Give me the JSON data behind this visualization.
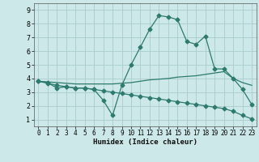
{
  "title": "",
  "xlabel": "Humidex (Indice chaleur)",
  "bg_color": "#cce8e8",
  "grid_color": "#aacccc",
  "line_color": "#2d7a6e",
  "xlim": [
    -0.5,
    23.5
  ],
  "ylim": [
    0.5,
    9.5
  ],
  "xticks": [
    0,
    1,
    2,
    3,
    4,
    5,
    6,
    7,
    8,
    9,
    10,
    11,
    12,
    13,
    14,
    15,
    16,
    17,
    18,
    19,
    20,
    21,
    22,
    23
  ],
  "yticks": [
    1,
    2,
    3,
    4,
    5,
    6,
    7,
    8,
    9
  ],
  "line1_x": [
    0,
    1,
    2,
    3,
    4,
    5,
    6,
    7,
    8,
    9,
    10,
    11,
    12,
    13,
    14,
    15,
    16,
    17,
    18,
    19,
    20,
    21,
    22,
    23
  ],
  "line1_y": [
    3.8,
    3.7,
    3.3,
    3.4,
    3.3,
    3.3,
    3.2,
    2.4,
    1.3,
    3.5,
    5.0,
    6.3,
    7.6,
    8.6,
    8.5,
    8.3,
    6.7,
    6.5,
    7.1,
    4.7,
    4.7,
    4.0,
    3.2,
    2.1
  ],
  "line2_x": [
    0,
    1,
    2,
    3,
    4,
    5,
    6,
    7,
    8,
    9,
    10,
    11,
    12,
    13,
    14,
    15,
    16,
    17,
    18,
    19,
    20,
    21,
    22,
    23
  ],
  "line2_y": [
    3.8,
    3.75,
    3.7,
    3.65,
    3.6,
    3.6,
    3.6,
    3.6,
    3.6,
    3.65,
    3.7,
    3.8,
    3.9,
    3.95,
    4.0,
    4.1,
    4.15,
    4.2,
    4.3,
    4.4,
    4.5,
    4.0,
    3.7,
    3.5
  ],
  "line3_x": [
    0,
    1,
    2,
    3,
    4,
    5,
    6,
    7,
    8,
    9,
    10,
    11,
    12,
    13,
    14,
    15,
    16,
    17,
    18,
    19,
    20,
    21,
    22,
    23
  ],
  "line3_y": [
    3.8,
    3.65,
    3.5,
    3.4,
    3.3,
    3.3,
    3.2,
    3.1,
    3.0,
    2.9,
    2.8,
    2.7,
    2.6,
    2.5,
    2.4,
    2.3,
    2.2,
    2.1,
    2.0,
    1.9,
    1.8,
    1.6,
    1.3,
    1.05
  ]
}
